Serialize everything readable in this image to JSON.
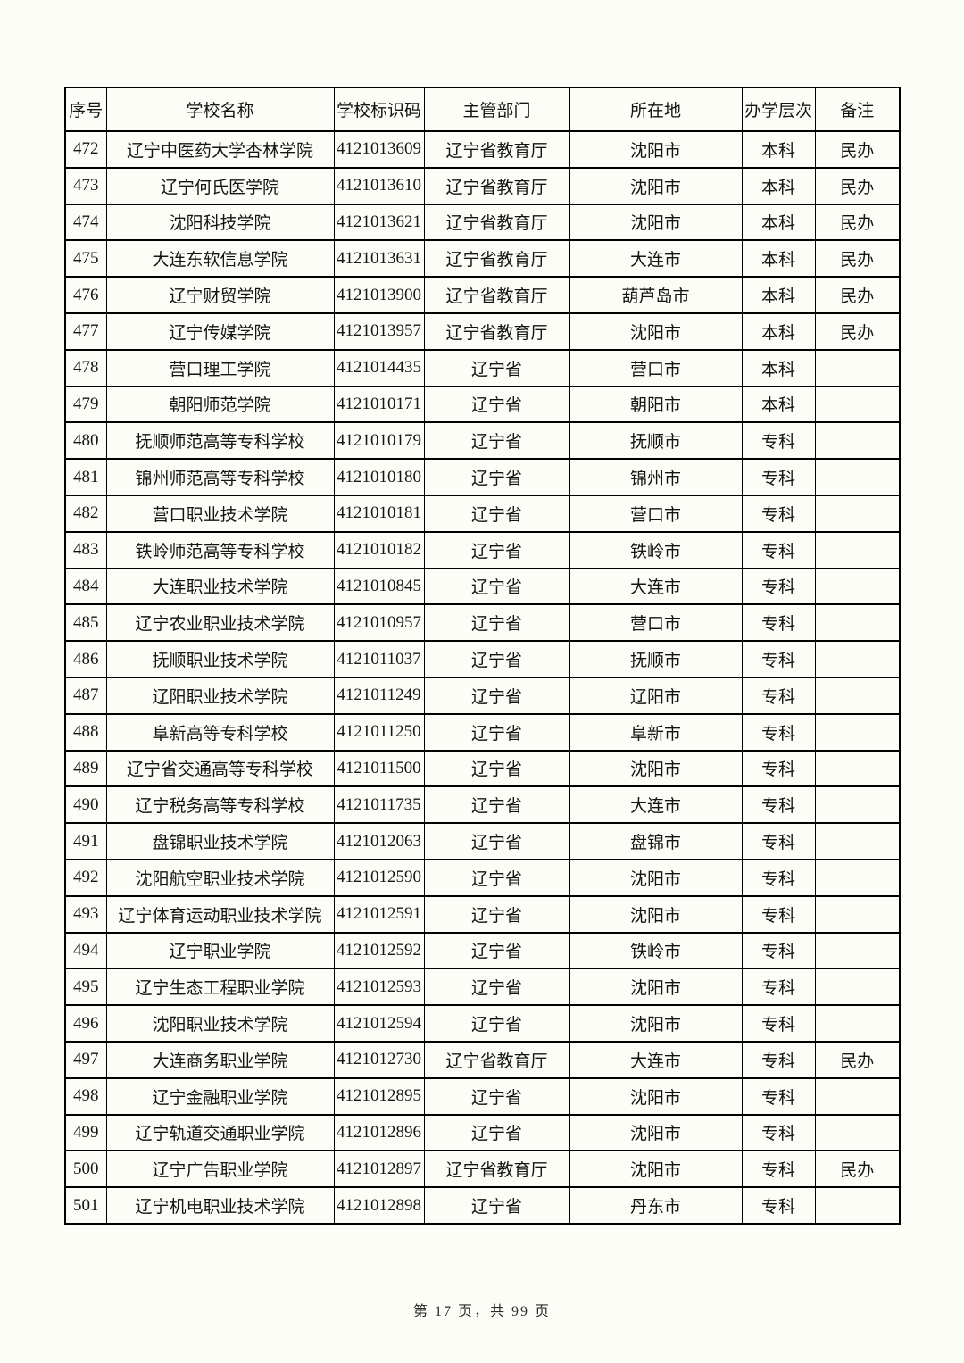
{
  "table": {
    "columns": [
      "序号",
      "学校名称",
      "学校标识码",
      "主管部门",
      "所在地",
      "办学层次",
      "备注"
    ],
    "rows": [
      [
        "472",
        "辽宁中医药大学杏林学院",
        "4121013609",
        "辽宁省教育厅",
        "沈阳市",
        "本科",
        "民办"
      ],
      [
        "473",
        "辽宁何氏医学院",
        "4121013610",
        "辽宁省教育厅",
        "沈阳市",
        "本科",
        "民办"
      ],
      [
        "474",
        "沈阳科技学院",
        "4121013621",
        "辽宁省教育厅",
        "沈阳市",
        "本科",
        "民办"
      ],
      [
        "475",
        "大连东软信息学院",
        "4121013631",
        "辽宁省教育厅",
        "大连市",
        "本科",
        "民办"
      ],
      [
        "476",
        "辽宁财贸学院",
        "4121013900",
        "辽宁省教育厅",
        "葫芦岛市",
        "本科",
        "民办"
      ],
      [
        "477",
        "辽宁传媒学院",
        "4121013957",
        "辽宁省教育厅",
        "沈阳市",
        "本科",
        "民办"
      ],
      [
        "478",
        "营口理工学院",
        "4121014435",
        "辽宁省",
        "营口市",
        "本科",
        ""
      ],
      [
        "479",
        "朝阳师范学院",
        "4121010171",
        "辽宁省",
        "朝阳市",
        "本科",
        ""
      ],
      [
        "480",
        "抚顺师范高等专科学校",
        "4121010179",
        "辽宁省",
        "抚顺市",
        "专科",
        ""
      ],
      [
        "481",
        "锦州师范高等专科学校",
        "4121010180",
        "辽宁省",
        "锦州市",
        "专科",
        ""
      ],
      [
        "482",
        "营口职业技术学院",
        "4121010181",
        "辽宁省",
        "营口市",
        "专科",
        ""
      ],
      [
        "483",
        "铁岭师范高等专科学校",
        "4121010182",
        "辽宁省",
        "铁岭市",
        "专科",
        ""
      ],
      [
        "484",
        "大连职业技术学院",
        "4121010845",
        "辽宁省",
        "大连市",
        "专科",
        ""
      ],
      [
        "485",
        "辽宁农业职业技术学院",
        "4121010957",
        "辽宁省",
        "营口市",
        "专科",
        ""
      ],
      [
        "486",
        "抚顺职业技术学院",
        "4121011037",
        "辽宁省",
        "抚顺市",
        "专科",
        ""
      ],
      [
        "487",
        "辽阳职业技术学院",
        "4121011249",
        "辽宁省",
        "辽阳市",
        "专科",
        ""
      ],
      [
        "488",
        "阜新高等专科学校",
        "4121011250",
        "辽宁省",
        "阜新市",
        "专科",
        ""
      ],
      [
        "489",
        "辽宁省交通高等专科学校",
        "4121011500",
        "辽宁省",
        "沈阳市",
        "专科",
        ""
      ],
      [
        "490",
        "辽宁税务高等专科学校",
        "4121011735",
        "辽宁省",
        "大连市",
        "专科",
        ""
      ],
      [
        "491",
        "盘锦职业技术学院",
        "4121012063",
        "辽宁省",
        "盘锦市",
        "专科",
        ""
      ],
      [
        "492",
        "沈阳航空职业技术学院",
        "4121012590",
        "辽宁省",
        "沈阳市",
        "专科",
        ""
      ],
      [
        "493",
        "辽宁体育运动职业技术学院",
        "4121012591",
        "辽宁省",
        "沈阳市",
        "专科",
        ""
      ],
      [
        "494",
        "辽宁职业学院",
        "4121012592",
        "辽宁省",
        "铁岭市",
        "专科",
        ""
      ],
      [
        "495",
        "辽宁生态工程职业学院",
        "4121012593",
        "辽宁省",
        "沈阳市",
        "专科",
        ""
      ],
      [
        "496",
        "沈阳职业技术学院",
        "4121012594",
        "辽宁省",
        "沈阳市",
        "专科",
        ""
      ],
      [
        "497",
        "大连商务职业学院",
        "4121012730",
        "辽宁省教育厅",
        "大连市",
        "专科",
        "民办"
      ],
      [
        "498",
        "辽宁金融职业学院",
        "4121012895",
        "辽宁省",
        "沈阳市",
        "专科",
        ""
      ],
      [
        "499",
        "辽宁轨道交通职业学院",
        "4121012896",
        "辽宁省",
        "沈阳市",
        "专科",
        ""
      ],
      [
        "500",
        "辽宁广告职业学院",
        "4121012897",
        "辽宁省教育厅",
        "沈阳市",
        "专科",
        "民办"
      ],
      [
        "501",
        "辽宁机电职业技术学院",
        "4121012898",
        "辽宁省",
        "丹东市",
        "专科",
        ""
      ]
    ]
  },
  "footer": {
    "page_info": "第 17 页，共 99 页"
  }
}
